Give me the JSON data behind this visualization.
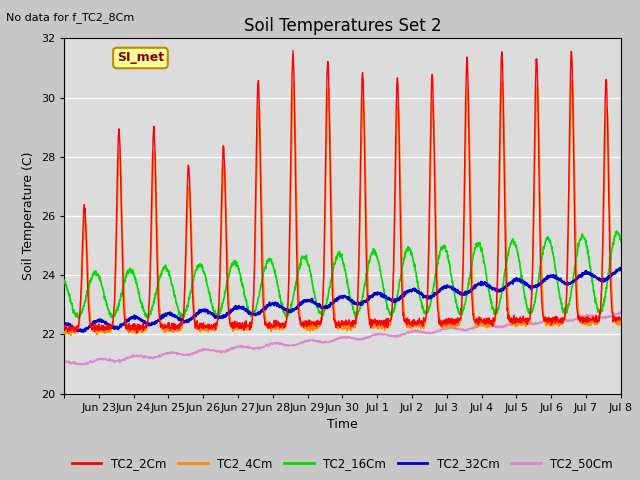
{
  "title": "Soil Temperatures Set 2",
  "ylabel": "Soil Temperature (C)",
  "xlabel": "Time",
  "note": "No data for f_TC2_8Cm",
  "ylim": [
    20,
    32
  ],
  "x_tick_labels": [
    "Jun 23",
    "Jun 24",
    "Jun 25",
    "Jun 26",
    "Jun 27",
    "Jun 28",
    "Jun 29",
    "Jun 30",
    "Jul 1",
    "Jul 2",
    "Jul 3",
    "Jul 4",
    "Jul 5",
    "Jul 6",
    "Jul 7",
    "Jul 8"
  ],
  "legend_entries": [
    "TC2_2Cm",
    "TC2_4Cm",
    "TC2_16Cm",
    "TC2_32Cm",
    "TC2_50Cm"
  ],
  "line_colors_hex": [
    "#ff0000",
    "#ff8c00",
    "#00dd00",
    "#0000cc",
    "#dd88cc"
  ],
  "plot_bg_color": "#dcdcdc",
  "fig_bg_color": "#c8c8c8",
  "SI_met_box_color": "#ffff99",
  "SI_met_border_color": "#bb8800",
  "n_points": 2000,
  "seed": 42
}
